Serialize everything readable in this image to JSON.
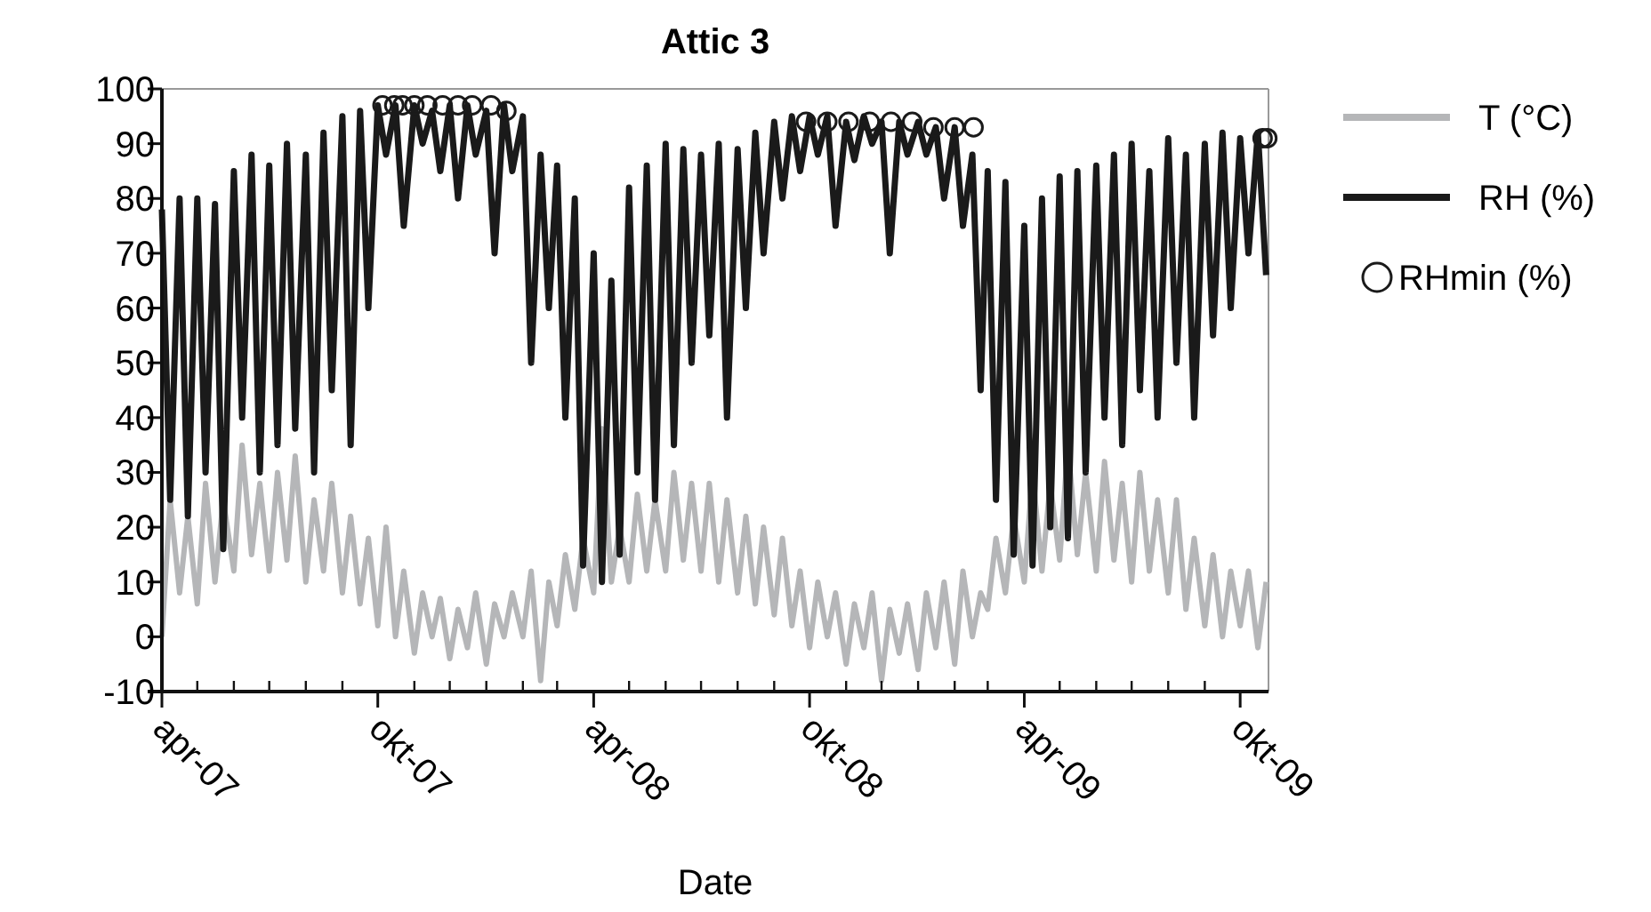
{
  "chart_data": {
    "type": "line",
    "title": "Attic 3",
    "xlabel": "Date",
    "legend": "right",
    "marker": "none",
    "line_style": "solid",
    "xlim": [
      "2007-04-01",
      "2009-10-25"
    ],
    "xticks": [
      {
        "value": "2007-04-01",
        "label": "apr-07"
      },
      {
        "value": "2007-05-01",
        "label": null
      },
      {
        "value": "2007-06-01",
        "label": null
      },
      {
        "value": "2007-07-01",
        "label": null
      },
      {
        "value": "2007-08-01",
        "label": null
      },
      {
        "value": "2007-09-01",
        "label": null
      },
      {
        "value": "2007-10-01",
        "label": "okt-07"
      },
      {
        "value": "2007-11-01",
        "label": null
      },
      {
        "value": "2007-12-01",
        "label": null
      },
      {
        "value": "2008-01-01",
        "label": null
      },
      {
        "value": "2008-02-01",
        "label": null
      },
      {
        "value": "2008-03-01",
        "label": null
      },
      {
        "value": "2008-04-01",
        "label": "apr-08"
      },
      {
        "value": "2008-05-01",
        "label": null
      },
      {
        "value": "2008-06-01",
        "label": null
      },
      {
        "value": "2008-07-01",
        "label": null
      },
      {
        "value": "2008-08-01",
        "label": null
      },
      {
        "value": "2008-09-01",
        "label": null
      },
      {
        "value": "2008-10-01",
        "label": "okt-08"
      },
      {
        "value": "2008-11-01",
        "label": null
      },
      {
        "value": "2008-12-01",
        "label": null
      },
      {
        "value": "2009-01-01",
        "label": null
      },
      {
        "value": "2009-02-01",
        "label": null
      },
      {
        "value": "2009-03-01",
        "label": null
      },
      {
        "value": "2009-04-01",
        "label": "apr-09"
      },
      {
        "value": "2009-05-01",
        "label": null
      },
      {
        "value": "2009-06-01",
        "label": null
      },
      {
        "value": "2009-07-01",
        "label": null
      },
      {
        "value": "2009-08-01",
        "label": null
      },
      {
        "value": "2009-09-01",
        "label": null
      },
      {
        "value": "2009-10-01",
        "label": "okt-09"
      }
    ],
    "ylim": [
      -10,
      100
    ],
    "yticks": [
      -10,
      0,
      10,
      20,
      30,
      40,
      50,
      60,
      70,
      80,
      90,
      100
    ],
    "x": [
      "2007-04-01",
      "2007-04-08",
      "2007-04-16",
      "2007-04-23",
      "2007-05-01",
      "2007-05-08",
      "2007-05-16",
      "2007-05-23",
      "2007-06-01",
      "2007-06-08",
      "2007-06-16",
      "2007-06-23",
      "2007-07-01",
      "2007-07-08",
      "2007-07-16",
      "2007-07-23",
      "2007-08-01",
      "2007-08-08",
      "2007-08-16",
      "2007-08-23",
      "2007-09-01",
      "2007-09-08",
      "2007-09-16",
      "2007-09-23",
      "2007-10-01",
      "2007-10-08",
      "2007-10-16",
      "2007-10-23",
      "2007-11-01",
      "2007-11-08",
      "2007-11-16",
      "2007-11-23",
      "2007-12-01",
      "2007-12-08",
      "2007-12-16",
      "2007-12-23",
      "2008-01-01",
      "2008-01-08",
      "2008-01-16",
      "2008-01-23",
      "2008-02-01",
      "2008-02-08",
      "2008-02-16",
      "2008-02-23",
      "2008-03-01",
      "2008-03-08",
      "2008-03-16",
      "2008-03-23",
      "2008-04-01",
      "2008-04-08",
      "2008-04-16",
      "2008-04-23",
      "2008-05-01",
      "2008-05-08",
      "2008-05-16",
      "2008-05-23",
      "2008-06-01",
      "2008-06-08",
      "2008-06-16",
      "2008-06-23",
      "2008-07-01",
      "2008-07-08",
      "2008-07-16",
      "2008-07-23",
      "2008-08-01",
      "2008-08-08",
      "2008-08-16",
      "2008-08-23",
      "2008-09-01",
      "2008-09-08",
      "2008-09-16",
      "2008-09-23",
      "2008-10-01",
      "2008-10-08",
      "2008-10-16",
      "2008-10-23",
      "2008-11-01",
      "2008-11-08",
      "2008-11-16",
      "2008-11-23",
      "2008-12-01",
      "2008-12-08",
      "2008-12-16",
      "2008-12-23",
      "2009-01-01",
      "2009-01-08",
      "2009-01-16",
      "2009-01-23",
      "2009-02-01",
      "2009-02-08",
      "2009-02-16",
      "2009-02-23",
      "2009-03-01",
      "2009-03-08",
      "2009-03-16",
      "2009-03-23",
      "2009-04-01",
      "2009-04-08",
      "2009-04-16",
      "2009-04-23",
      "2009-05-01",
      "2009-05-08",
      "2009-05-16",
      "2009-05-23",
      "2009-06-01",
      "2009-06-08",
      "2009-06-16",
      "2009-06-23",
      "2009-07-01",
      "2009-07-08",
      "2009-07-16",
      "2009-07-23",
      "2009-08-01",
      "2009-08-08",
      "2009-08-16",
      "2009-08-23",
      "2009-09-01",
      "2009-09-08",
      "2009-09-16",
      "2009-09-23",
      "2009-10-01",
      "2009-10-08",
      "2009-10-16",
      "2009-10-23"
    ],
    "series": [
      {
        "name": "T (°C)",
        "type": "line",
        "color": "#b5b6b8",
        "values": [
          0,
          25,
          8,
          22,
          6,
          28,
          10,
          25,
          12,
          35,
          15,
          28,
          12,
          30,
          14,
          33,
          10,
          25,
          12,
          28,
          8,
          22,
          6,
          18,
          2,
          20,
          0,
          12,
          -3,
          8,
          0,
          7,
          -4,
          5,
          -2,
          8,
          -5,
          6,
          0,
          8,
          0,
          12,
          -8,
          10,
          2,
          15,
          5,
          18,
          8,
          38,
          10,
          20,
          10,
          26,
          12,
          25,
          12,
          30,
          14,
          28,
          12,
          28,
          10,
          25,
          8,
          22,
          6,
          20,
          4,
          18,
          2,
          12,
          -2,
          10,
          0,
          8,
          -5,
          6,
          -2,
          8,
          -8,
          5,
          -3,
          6,
          -6,
          8,
          -2,
          10,
          -5,
          12,
          0,
          8,
          5,
          18,
          8,
          22,
          10,
          30,
          12,
          28,
          14,
          35,
          15,
          30,
          12,
          32,
          14,
          28,
          10,
          30,
          12,
          25,
          8,
          25,
          5,
          18,
          2,
          15,
          0,
          12,
          2,
          12,
          -2,
          10
        ]
      },
      {
        "name": "RH (%)",
        "type": "line",
        "color": "#1a1a1a",
        "values": [
          78,
          25,
          80,
          22,
          80,
          30,
          79,
          16,
          85,
          40,
          88,
          30,
          86,
          35,
          90,
          38,
          88,
          30,
          92,
          45,
          95,
          35,
          96,
          60,
          97,
          88,
          97,
          75,
          97,
          90,
          96,
          85,
          97,
          80,
          97,
          88,
          96,
          70,
          97,
          85,
          95,
          50,
          88,
          60,
          86,
          40,
          80,
          13,
          70,
          10,
          65,
          15,
          82,
          30,
          86,
          25,
          90,
          35,
          89,
          50,
          88,
          55,
          90,
          40,
          89,
          60,
          92,
          70,
          94,
          80,
          95,
          85,
          95,
          88,
          95,
          75,
          94,
          87,
          95,
          90,
          94,
          70,
          94,
          88,
          94,
          88,
          93,
          80,
          93,
          75,
          88,
          45,
          85,
          25,
          83,
          15,
          75,
          13,
          80,
          20,
          84,
          18,
          85,
          30,
          86,
          40,
          88,
          35,
          90,
          45,
          85,
          40,
          91,
          50,
          88,
          40,
          90,
          55,
          92,
          60,
          91,
          70,
          92,
          66
        ]
      },
      {
        "name": "RHmin (%)",
        "type": "scatter",
        "marker": "circle",
        "color": "#1a1a1a",
        "x": [
          "2007-10-05",
          "2007-10-15",
          "2007-10-22",
          "2007-11-01",
          "2007-11-12",
          "2007-11-25",
          "2007-12-08",
          "2007-12-20",
          "2008-01-05",
          "2008-01-18",
          "2008-09-28",
          "2008-10-16",
          "2008-11-03",
          "2008-11-21",
          "2008-12-09",
          "2008-12-27",
          "2009-01-14",
          "2009-02-01",
          "2009-02-17",
          "2009-10-20",
          "2009-10-24"
        ],
        "values": [
          97,
          97,
          97,
          97,
          97,
          97,
          97,
          97,
          97,
          96,
          94,
          94,
          94,
          94,
          94,
          94,
          93,
          93,
          93,
          91,
          91
        ]
      }
    ]
  }
}
